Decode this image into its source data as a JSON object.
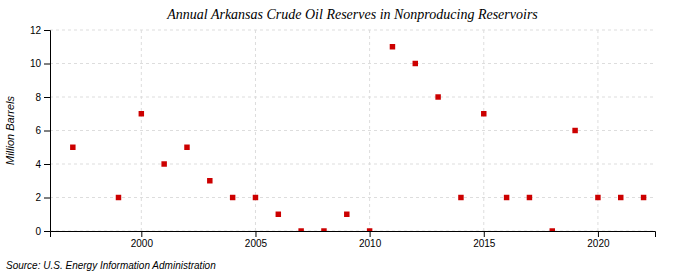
{
  "chart_data": {
    "type": "scatter",
    "title": "Annual Arkansas Crude Oil Reserves in Nonproducing Reservoirs",
    "ylabel": "Million Barrels",
    "source": "Source: U.S. Energy Information Administration",
    "x": [
      1997,
      1999,
      2000,
      2001,
      2002,
      2003,
      2004,
      2005,
      2006,
      2007,
      2008,
      2009,
      2010,
      2011,
      2012,
      2013,
      2014,
      2015,
      2016,
      2017,
      2018,
      2019,
      2020,
      2021,
      2022
    ],
    "values": [
      5,
      2,
      7,
      4,
      5,
      3,
      2,
      2,
      1,
      0,
      0,
      1,
      0,
      11,
      10,
      8,
      2,
      7,
      2,
      2,
      0,
      6,
      2,
      2,
      2
    ],
    "color": "#cc0000",
    "marker": "square",
    "xlim": [
      1996,
      2022.5
    ],
    "xticks": [
      2000,
      2005,
      2010,
      2015,
      2020
    ],
    "ylim": [
      0,
      12
    ],
    "yticks": [
      0,
      2,
      4,
      6,
      8,
      10,
      12
    ],
    "grid": true
  }
}
